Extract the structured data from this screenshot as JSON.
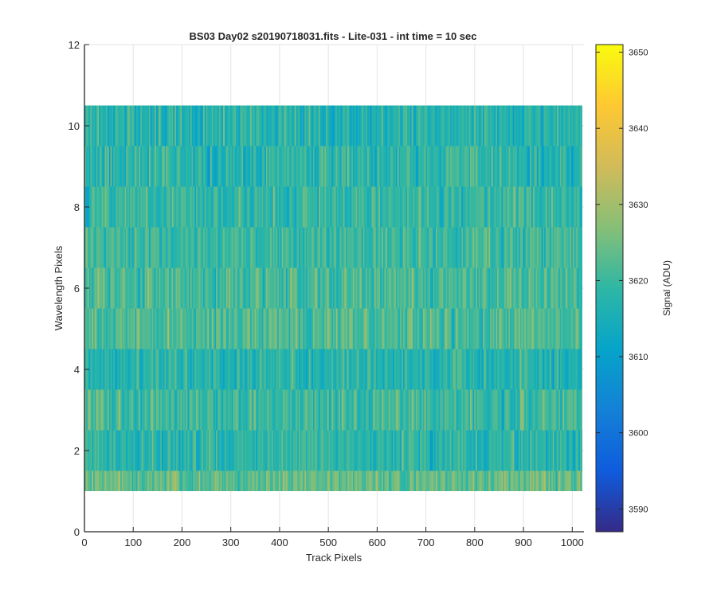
{
  "chart_data": {
    "type": "heatmap",
    "title": "BS03 Day02  s20190718031.fits - Lite-031 - int time = 10 sec",
    "xlabel": "Track Pixels",
    "ylabel": "Wavelength Pixels",
    "xlim": [
      0,
      1024
    ],
    "ylim": [
      0,
      12
    ],
    "xticks": [
      0,
      100,
      200,
      300,
      400,
      500,
      600,
      700,
      800,
      900,
      1000
    ],
    "yticks": [
      0,
      2,
      4,
      6,
      8,
      10,
      12
    ],
    "grid": true,
    "image": {
      "x_range": [
        1,
        1024
      ],
      "rows": [
        1,
        2,
        3,
        4,
        5,
        6,
        7,
        8,
        9,
        10
      ],
      "row_extent": [
        1,
        11
      ],
      "row_mean_signal_adu": [
        3624,
        3618,
        3620,
        3617,
        3622,
        3621,
        3620,
        3619,
        3618,
        3617
      ]
    },
    "colorbar": {
      "label": "Signal (ADU)",
      "limits": [
        3587,
        3651
      ],
      "ticks": [
        3590,
        3600,
        3610,
        3620,
        3630,
        3640,
        3650
      ],
      "colormap": "parula",
      "placement": "right"
    }
  }
}
